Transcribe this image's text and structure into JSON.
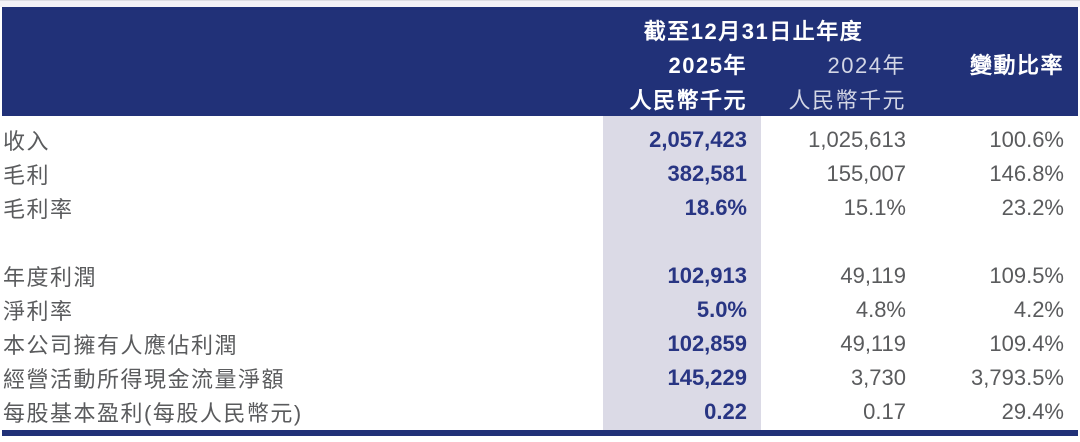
{
  "colors": {
    "band": "#213178",
    "highlight": "#dbdae6",
    "accent": "#283583",
    "text": "#5a5b5d",
    "dim": "#d3d6e5"
  },
  "header": {
    "period": "截至12月31日止年度",
    "col_2025": "2025年",
    "col_2024": "2024年",
    "col_change": "變動比率",
    "unit_2025": "人民幣千元",
    "unit_2024": "人民幣千元"
  },
  "rows": [
    {
      "label": "收入",
      "v2025": "2,057,423",
      "v2024": "1,025,613",
      "change": "100.6%"
    },
    {
      "label": "毛利",
      "v2025": "382,581",
      "v2024": "155,007",
      "change": "146.8%"
    },
    {
      "label": "毛利率",
      "v2025": "18.6%",
      "v2024": "15.1%",
      "change": "23.2%"
    },
    {
      "label": "",
      "v2025": "",
      "v2024": "",
      "change": ""
    },
    {
      "label": "年度利潤",
      "v2025": "102,913",
      "v2024": "49,119",
      "change": "109.5%"
    },
    {
      "label": "淨利率",
      "v2025": "5.0%",
      "v2024": "4.8%",
      "change": "4.2%"
    },
    {
      "label": "本公司擁有人應佔利潤",
      "v2025": "102,859",
      "v2024": "49,119",
      "change": "109.4%"
    },
    {
      "label": "經營活動所得現金流量淨額",
      "v2025": "145,229",
      "v2024": "3,730",
      "change": "3,793.5%"
    },
    {
      "label": "每股基本盈利(每股人民幣元)",
      "v2025": "0.22",
      "v2024": "0.17",
      "change": "29.4%"
    }
  ]
}
